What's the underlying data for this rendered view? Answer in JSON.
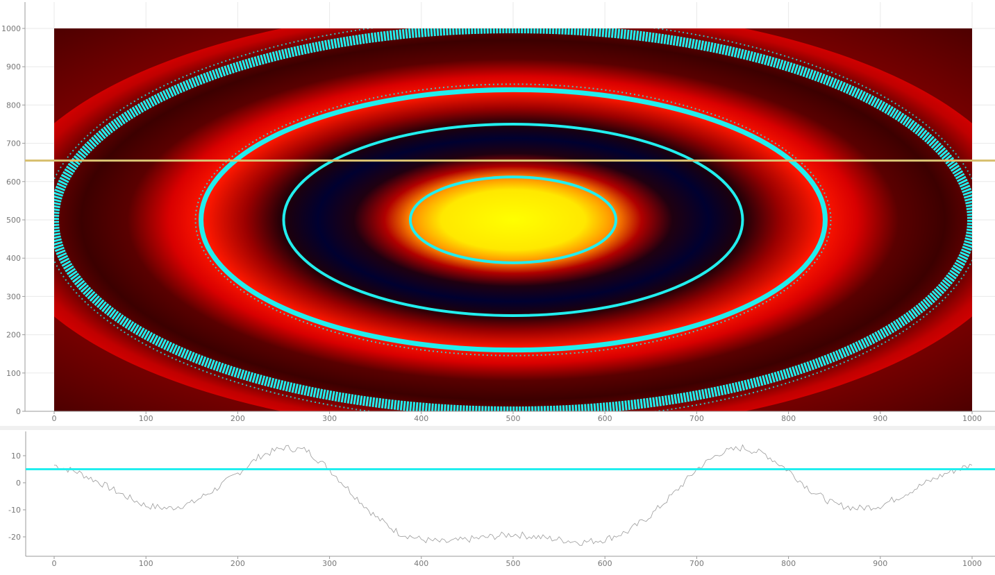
{
  "colors": {
    "cursor_line": "#d8c070",
    "threshold_line": "#22eeee",
    "contour": "#22eeee",
    "profile_trace": "#9a9a9a",
    "colormap": [
      "#000022",
      "#3a0000",
      "#a00000",
      "#ff1a00",
      "#ff8000",
      "#ffe000",
      "#ffff00"
    ]
  },
  "chart_data": [
    {
      "type": "heatmap",
      "title": "",
      "xlabel": "",
      "ylabel": "",
      "xlim": [
        0,
        1000
      ],
      "ylim": [
        0,
        1000
      ],
      "x_ticks": [
        "0",
        "100",
        "200",
        "300",
        "400",
        "500",
        "600",
        "700",
        "800",
        "900",
        "1000"
      ],
      "y_ticks": [
        "0",
        "100",
        "200",
        "300",
        "400",
        "500",
        "600",
        "700",
        "800",
        "900",
        "1000"
      ],
      "field": "radially oscillating intensity, elliptical rings centered at (500, 500)",
      "center": [
        500,
        500
      ],
      "contour_semi_axes_x": [
        112,
        250,
        340,
        500
      ],
      "contour_semi_axes_y": [
        112,
        250,
        340,
        500
      ],
      "horizontal_cursor_y": 655,
      "grid": true
    },
    {
      "type": "line",
      "title": "",
      "xlabel": "",
      "ylabel": "",
      "xlim": [
        -30,
        1025
      ],
      "ylim": [
        -28,
        20
      ],
      "x_ticks": [
        "0",
        "100",
        "200",
        "300",
        "400",
        "500",
        "600",
        "700",
        "800",
        "900",
        "1000"
      ],
      "y_ticks": [
        "-20",
        "-10",
        "0",
        "10"
      ],
      "series": [
        {
          "x": [
            0,
            25,
            50,
            75,
            100,
            125,
            150,
            175,
            200,
            225,
            250,
            275,
            300,
            325,
            350,
            375,
            400,
            425,
            450,
            475,
            500,
            525,
            550,
            575,
            600,
            625,
            650,
            675,
            700,
            725,
            750,
            775,
            800,
            825,
            850,
            875,
            900,
            925,
            950,
            975,
            1000
          ],
          "y": [
            6.5,
            4,
            0,
            -4.5,
            -8.5,
            -9.5,
            -7.5,
            -2.5,
            3.5,
            10,
            13,
            12,
            5,
            -4,
            -12.5,
            -18.5,
            -21,
            -22,
            -21,
            -20,
            -19,
            -20,
            -21,
            -22,
            -21,
            -18,
            -12,
            -4,
            5,
            11,
            13,
            10.5,
            4.5,
            -3,
            -8,
            -9.5,
            -8.5,
            -4.5,
            0,
            4,
            6.5
          ]
        }
      ],
      "threshold_y": 5,
      "grid": false
    }
  ]
}
